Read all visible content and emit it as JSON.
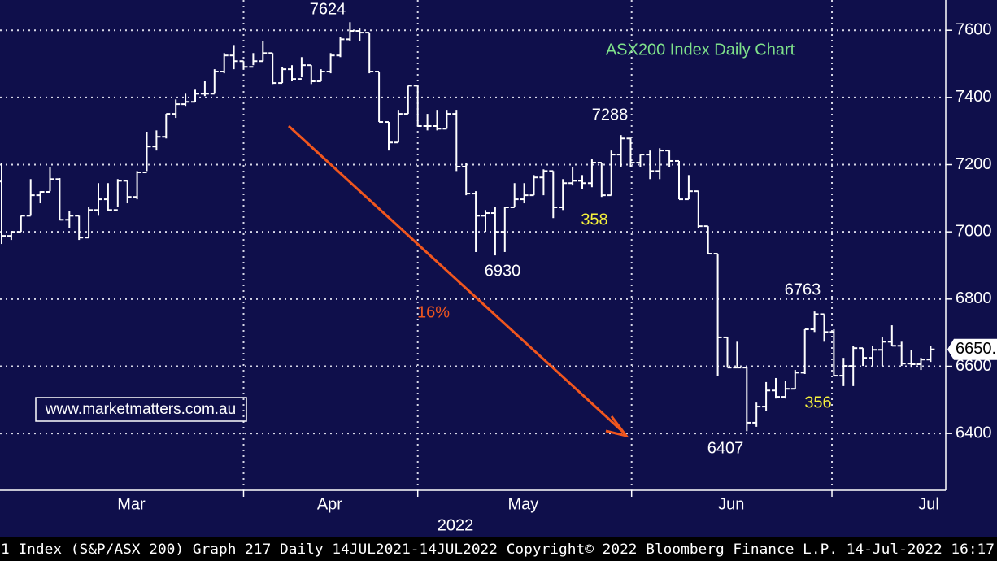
{
  "chart_data": {
    "type": "ohlc",
    "title": "ASX200 Index Daily Chart",
    "watermark": "www.marketmatters.com.au",
    "x_label": "2022",
    "footer": "1 Index (S&P/ASX 200) Graph 217  Daily 14JUL2021-14JUL2022  Copyright© 2022 Bloomberg Finance L.P.  14-Jul-2022 16:17",
    "colors": {
      "background": "#0f0f4b",
      "bars": "#ffffff",
      "grid": "#d8d8e8",
      "arrow": "#f0561e",
      "title": "#7ee08a",
      "highlight": "#f5f03c"
    },
    "ylim": [
      6231,
      7690
    ],
    "yticks": [
      6400,
      6600,
      6800,
      7000,
      7200,
      7400,
      7600
    ],
    "grid": true,
    "month_labels": [
      {
        "value": 13.4,
        "label": "Mar"
      },
      {
        "value": 33.9,
        "label": "Apr"
      },
      {
        "value": 53.9,
        "label": "May"
      },
      {
        "value": 75.4,
        "label": "Jun"
      },
      {
        "value": 95.8,
        "label": "Jul"
      }
    ],
    "xgrid": [
      25,
      43,
      65.1,
      85.8
    ],
    "last_value": 6650.2,
    "last_label": "6650.",
    "annotations": [
      "7624",
      "7288",
      "6930",
      "6407",
      "6763",
      "358",
      "356",
      "16%"
    ],
    "open": [
      7150,
      6988,
      7000,
      7048,
      7109,
      7119,
      7157,
      7036,
      7048,
      6983,
      7065,
      7097,
      7065,
      7152,
      7104,
      7177,
      7254,
      7283,
      7351,
      7380,
      7387,
      7411,
      7411,
      7477,
      7525,
      7508,
      7491,
      7508,
      7532,
      7443,
      7484,
      7455,
      7496,
      7448,
      7477,
      7525,
      7573,
      7598,
      7593,
      7477,
      7327,
      7266,
      7351,
      7435,
      7315,
      7315,
      7307,
      7351,
      7194,
      7114,
      7048,
      7056,
      7000,
      7073,
      7097,
      7109,
      7162,
      7181,
      7073,
      7145,
      7152,
      7145,
      7206,
      7109,
      7230,
      7278,
      7206,
      7230,
      7181,
      7242,
      7211,
      7097,
      7121,
      7017,
      6935,
      6686,
      6596,
      6596,
      6432,
      6480,
      6528,
      6509,
      6533,
      6581,
      6710,
      6755,
      6702,
      6572,
      6601,
      6654,
      6625,
      6649,
      6673,
      6661,
      6608,
      6606,
      6620
    ],
    "high": [
      7206,
      7000,
      7048,
      7157,
      7121,
      7194,
      7160,
      7061,
      7048,
      7073,
      7145,
      7145,
      7157,
      7152,
      7181,
      7298,
      7302,
      7351,
      7394,
      7411,
      7423,
      7448,
      7484,
      7532,
      7556,
      7508,
      7532,
      7569,
      7532,
      7491,
      7496,
      7520,
      7496,
      7484,
      7532,
      7581,
      7624,
      7605,
      7593,
      7477,
      7327,
      7363,
      7435,
      7435,
      7351,
      7363,
      7363,
      7363,
      7206,
      7121,
      7065,
      7073,
      7073,
      7145,
      7145,
      7169,
      7186,
      7181,
      7157,
      7194,
      7169,
      7218,
      7206,
      7242,
      7288,
      7280,
      7230,
      7242,
      7249,
      7242,
      7211,
      7169,
      7121,
      7017,
      6935,
      6686,
      6673,
      6596,
      6492,
      6553,
      6565,
      6557,
      6589,
      6710,
      6763,
      6755,
      6710,
      6625,
      6661,
      6654,
      6661,
      6686,
      6722,
      6673,
      6649,
      6625,
      6661
    ],
    "low": [
      6964,
      6976,
      7000,
      7048,
      7085,
      7121,
      7036,
      7012,
      6976,
      6983,
      7048,
      7061,
      7073,
      7085,
      7097,
      7181,
      7242,
      7278,
      7339,
      7375,
      7387,
      7404,
      7411,
      7472,
      7484,
      7484,
      7496,
      7508,
      7440,
      7443,
      7448,
      7460,
      7440,
      7448,
      7472,
      7520,
      7569,
      7569,
      7472,
      7327,
      7242,
      7266,
      7351,
      7315,
      7302,
      7302,
      7307,
      7181,
      7109,
      6940,
      7000,
      6930,
      6940,
      7073,
      7085,
      7109,
      7109,
      7041,
      7065,
      7138,
      7128,
      7133,
      7104,
      7109,
      7194,
      7194,
      7194,
      7157,
      7157,
      7194,
      7097,
      7097,
      7012,
      6935,
      6572,
      6596,
      6596,
      6407,
      6420,
      6468,
      6504,
      6504,
      6533,
      6577,
      6702,
      6673,
      6572,
      6541,
      6541,
      6601,
      6601,
      6601,
      6661,
      6601,
      6596,
      6589,
      6613
    ],
    "close": [
      6988,
      7000,
      7048,
      7109,
      7119,
      7157,
      7036,
      7048,
      6983,
      7065,
      7097,
      7065,
      7152,
      7104,
      7177,
      7254,
      7283,
      7351,
      7380,
      7387,
      7411,
      7411,
      7477,
      7525,
      7508,
      7491,
      7508,
      7532,
      7443,
      7484,
      7455,
      7496,
      7448,
      7477,
      7525,
      7573,
      7598,
      7593,
      7477,
      7327,
      7266,
      7351,
      7435,
      7315,
      7315,
      7307,
      7351,
      7194,
      7114,
      7048,
      7056,
      7000,
      7073,
      7097,
      7109,
      7162,
      7181,
      7073,
      7145,
      7152,
      7145,
      7206,
      7109,
      7230,
      7278,
      7206,
      7230,
      7181,
      7242,
      7211,
      7097,
      7121,
      7017,
      6935,
      6686,
      6596,
      6596,
      6432,
      6480,
      6528,
      6509,
      6533,
      6581,
      6710,
      6755,
      6702,
      6572,
      6601,
      6654,
      6625,
      6649,
      6673,
      6661,
      6608,
      6606,
      6620,
      6650.2
    ]
  }
}
